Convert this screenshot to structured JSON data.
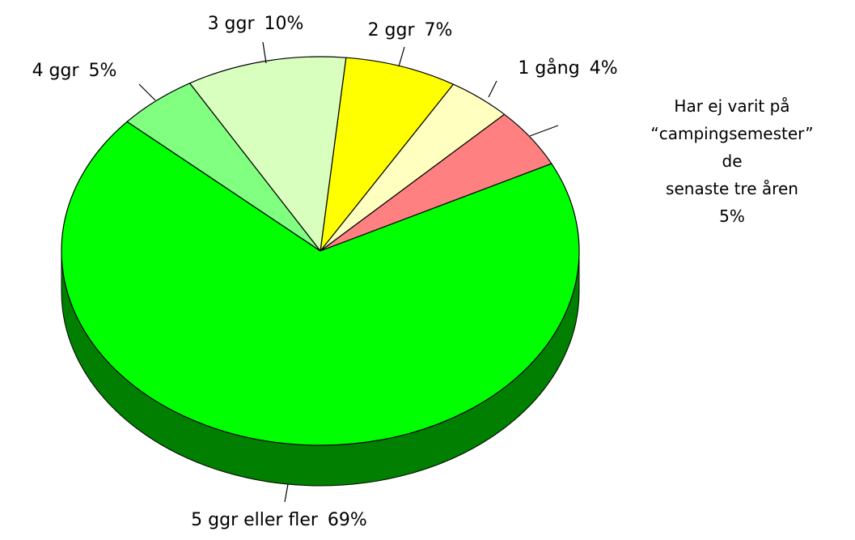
{
  "chart_data": {
    "type": "pie",
    "categories": [
      "Har ej varit på\n“campingsemester” de\nsenaste tre åren",
      "1 gång",
      "2 ggr",
      "3 ggr",
      "4 ggr",
      "5 ggr eller fler"
    ],
    "values": [
      5,
      4,
      7,
      10,
      5,
      69
    ],
    "value_labels": [
      "5%",
      "4%",
      "7%",
      "10%",
      "5%",
      "69%"
    ],
    "colors": [
      "#ff8080",
      "#ffffc0",
      "#ffff00",
      "#d9ffbf",
      "#80ff80",
      "#00ff00"
    ]
  }
}
